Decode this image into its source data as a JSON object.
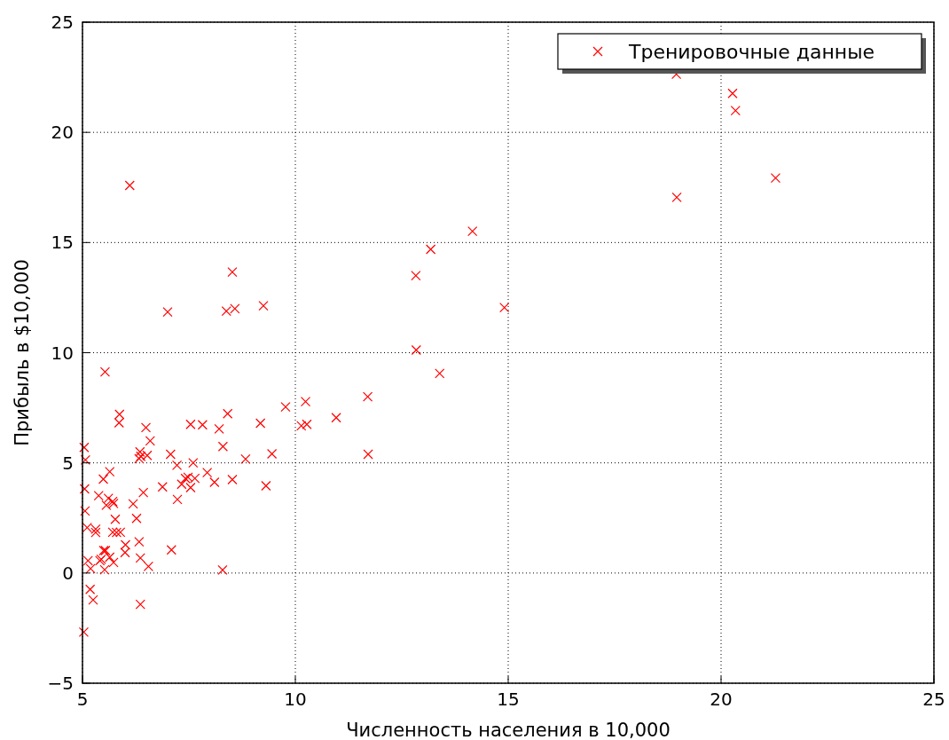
{
  "chart_data": {
    "type": "scatter",
    "xlabel": "Численность населения в 10,000",
    "ylabel": "Прибыль в $10,000",
    "xlim": [
      5,
      25
    ],
    "xticks": [
      5,
      10,
      15,
      20,
      25
    ],
    "ylim": [
      -5,
      25
    ],
    "yticks": [
      -5,
      0,
      5,
      10,
      15,
      20,
      25
    ],
    "grid": true,
    "legend": "top right",
    "marker": "cross",
    "series": [
      {
        "name": "Тренировочные данные",
        "color": "#ff0000",
        "x": [
          6.11,
          5.53,
          8.52,
          7.0,
          5.86,
          8.38,
          7.48,
          8.58,
          6.49,
          5.05,
          5.71,
          14.16,
          5.73,
          8.41,
          5.64,
          5.38,
          6.37,
          5.13,
          6.43,
          7.07,
          6.19,
          20.27,
          5.49,
          6.33,
          5.56,
          18.95,
          12.83,
          10.96,
          13.18,
          5.25,
          6.59,
          9.25,
          5.89,
          8.21,
          7.93,
          8.1,
          5.61,
          12.84,
          6.35,
          5.41,
          6.88,
          11.71,
          5.77,
          7.82,
          7.09,
          5.07,
          5.8,
          11.7,
          5.54,
          7.54,
          5.31,
          7.42,
          7.6,
          6.33,
          6.36,
          6.27,
          5.64,
          9.31,
          9.45,
          8.83,
          5.18,
          21.28,
          14.91,
          18.96,
          7.22,
          8.3,
          10.24,
          5.5,
          20.34,
          10.14,
          7.33,
          6.01,
          7.23,
          5.03,
          6.55,
          7.54,
          5.04,
          10.27,
          5.11,
          5.73,
          5.19,
          6.36,
          9.77,
          6.52,
          8.52,
          9.18,
          6.0,
          5.52,
          5.06,
          5.71,
          7.64,
          5.87,
          5.31,
          8.29,
          13.39,
          5.44
        ],
        "values": [
          17.59,
          9.13,
          13.66,
          11.85,
          6.82,
          11.89,
          4.35,
          12.0,
          6.6,
          3.82,
          3.25,
          15.51,
          3.16,
          7.23,
          0.72,
          3.51,
          5.3,
          0.56,
          3.65,
          5.39,
          3.14,
          21.77,
          4.26,
          5.19,
          3.08,
          22.64,
          13.5,
          7.05,
          14.69,
          -1.22,
          6.0,
          12.13,
          1.85,
          6.54,
          4.56,
          4.12,
          3.39,
          10.12,
          5.5,
          0.56,
          3.91,
          5.39,
          2.44,
          6.73,
          1.05,
          5.13,
          1.84,
          8.0,
          1.02,
          6.75,
          1.84,
          4.29,
          5.0,
          1.42,
          -1.42,
          2.48,
          4.6,
          3.96,
          5.41,
          5.17,
          -0.74,
          17.93,
          12.05,
          17.05,
          4.89,
          5.74,
          7.78,
          1.02,
          20.99,
          6.68,
          4.03,
          1.28,
          3.34,
          -2.68,
          0.3,
          3.88,
          5.7,
          6.75,
          2.06,
          0.48,
          0.2,
          0.68,
          7.54,
          5.34,
          4.24,
          6.8,
          0.93,
          0.15,
          2.82,
          1.85,
          4.3,
          7.2,
          1.99,
          0.14,
          9.06,
          0.62
        ]
      }
    ]
  }
}
